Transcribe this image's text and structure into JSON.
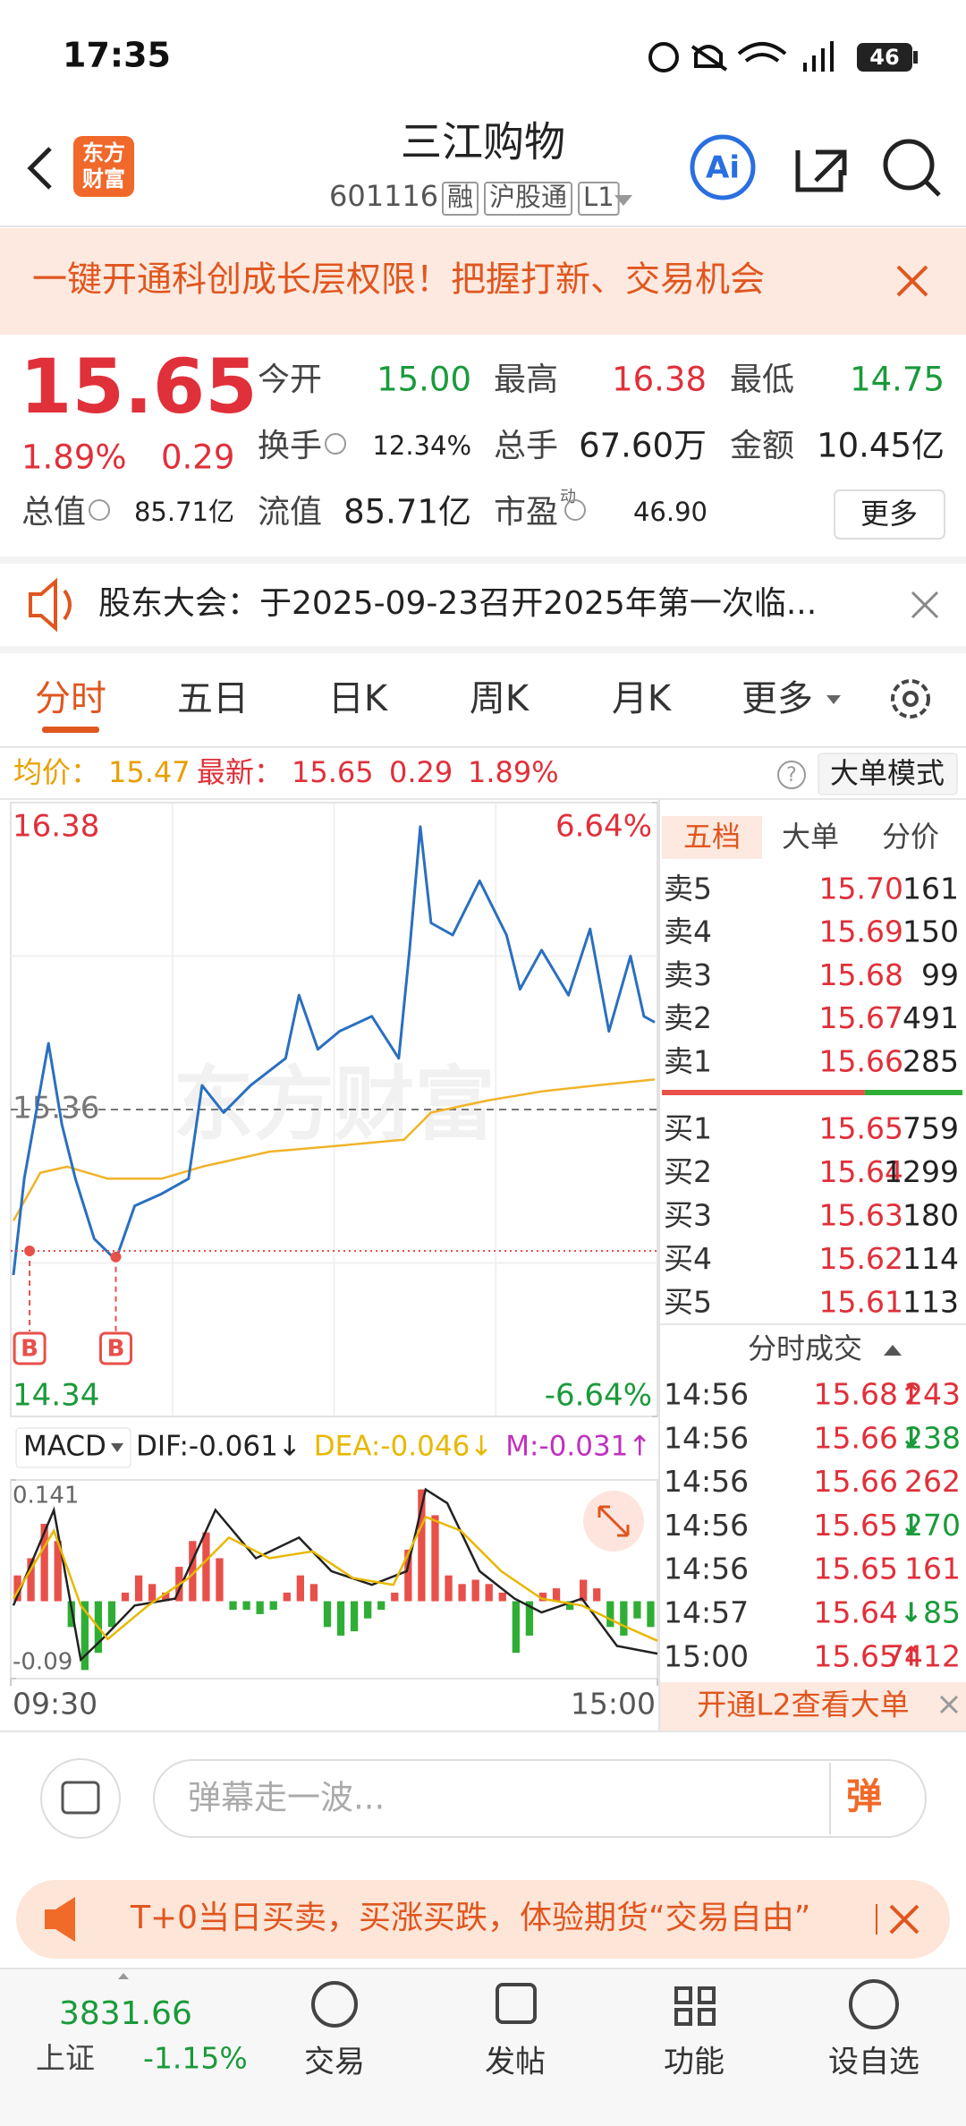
{
  "status_bar": {
    "time": "17:35",
    "battery": "46"
  },
  "header": {
    "logo": [
      "东方",
      "财富"
    ],
    "title": "三江购物",
    "code": "601116",
    "tags": [
      "融",
      "沪股通",
      "L1"
    ],
    "ai_button": "Ai"
  },
  "banner": {
    "text": "一键开通科创成长层权限！把握打新、交易机会"
  },
  "quote": {
    "price": "15.65",
    "change_pct": "1.89%",
    "change": "0.29",
    "rows": [
      [
        {
          "label": "今开",
          "value": "15.00",
          "color": "#1a9a3a"
        },
        {
          "label": "最高",
          "value": "16.38",
          "color": "#e0303a"
        },
        {
          "label": "最低",
          "value": "14.75",
          "color": "#1a9a3a"
        }
      ],
      [
        {
          "label": "换手",
          "value": "12.34%",
          "info": true
        },
        {
          "label": "总手",
          "value": "67.60万"
        },
        {
          "label": "金额",
          "value": "10.45亿"
        }
      ],
      [
        {
          "label": "总值",
          "value": "85.71亿",
          "info": true
        },
        {
          "label": "流值",
          "value": "85.71亿"
        },
        {
          "label": "市盈",
          "sup": "动",
          "value": "46.90",
          "info": true
        }
      ]
    ],
    "more_button": "更多"
  },
  "notice": {
    "text": "股东大会：于2025-09-23召开2025年第一次临..."
  },
  "tabs": {
    "items": [
      "分时",
      "五日",
      "日K",
      "周K",
      "月K",
      "更多"
    ],
    "active": 0
  },
  "info_line": {
    "avg_label": "均价：",
    "avg": "15.47",
    "last_label": "最新：",
    "last": "15.65",
    "change": "0.29",
    "change_pct": "1.89%",
    "mode_button": "大单模式"
  },
  "chart_data": [
    {
      "type": "line",
      "watermark": "东方财富",
      "xlim": [
        0,
        240
      ],
      "xticks": [
        {
          "value": 0,
          "label": "09:30"
        },
        {
          "value": 240,
          "label": "15:00"
        }
      ],
      "ylim": [
        14.34,
        16.38
      ],
      "yticks": [
        16.38,
        15.36,
        14.34
      ],
      "y2lim": [
        -6.64,
        6.64
      ],
      "y2ticks": [
        {
          "value": 6.64,
          "label": "6.64%"
        },
        {
          "value": -6.64,
          "label": "-6.64%"
        }
      ],
      "series": [
        {
          "color": "#2a6fc0",
          "x": [
            1,
            5,
            14,
            19,
            24,
            31,
            39,
            46,
            56,
            66,
            71,
            79,
            89,
            102,
            107,
            114,
            122,
            134,
            144,
            148,
            152,
            156,
            164,
            174,
            184,
            189,
            197,
            207,
            215,
            222,
            230,
            235,
            239
          ],
          "values": [
            14.81,
            15.13,
            15.58,
            15.31,
            15.13,
            14.93,
            14.86,
            15.04,
            15.08,
            15.13,
            15.44,
            15.35,
            15.44,
            15.53,
            15.74,
            15.56,
            15.62,
            15.67,
            15.53,
            15.89,
            16.3,
            15.98,
            15.94,
            16.12,
            15.94,
            15.76,
            15.89,
            15.74,
            15.96,
            15.62,
            15.87,
            15.67,
            15.65
          ]
        },
        {
          "color": "#f0b429",
          "x": [
            1,
            11,
            21,
            36,
            56,
            71,
            96,
            122,
            146,
            156,
            177,
            197,
            217,
            239
          ],
          "values": [
            14.99,
            15.15,
            15.17,
            15.13,
            15.13,
            15.17,
            15.22,
            15.24,
            15.26,
            15.35,
            15.39,
            15.42,
            15.44,
            15.46
          ]
        }
      ],
      "markers": {
        "label": "B",
        "color": "#e8504a",
        "x": [
          7,
          39
        ],
        "values": [
          14.89,
          14.87
        ]
      }
    },
    {
      "type": "macd",
      "indicator": "MACD",
      "labels": [
        {
          "text": "DIF:-0.061↓",
          "color": "#222222"
        },
        {
          "text": "DEA:-0.046↓",
          "color": "#e8b800"
        },
        {
          "text": "M:-0.031↑",
          "color": "#c030c0"
        }
      ],
      "xlim": [
        0,
        240
      ],
      "ylim": [
        -0.09,
        0.141
      ],
      "yticks": [
        0.141,
        -0.09
      ],
      "histogram": {
        "up_color": "#e8504a",
        "down_color": "#2fae35",
        "x": [
          2.5,
          7.5,
          12.5,
          17.5,
          22.5,
          27.5,
          32.5,
          37.5,
          42.5,
          47.5,
          52.5,
          57.5,
          62.5,
          67.5,
          72.5,
          77.5,
          82.5,
          87.5,
          92.5,
          97.5,
          102.5,
          107.5,
          112.5,
          117.5,
          122.5,
          127.5,
          132.5,
          137.5,
          142.5,
          147.5,
          152.5,
          157.5,
          162.5,
          167.5,
          172.5,
          177.5,
          182.5,
          187.5,
          192.5,
          197.5,
          202.5,
          207.5,
          212.5,
          217.5,
          222.5,
          227.5,
          232.5,
          237.5
        ],
        "values": [
          0.03,
          0.05,
          0.09,
          0.07,
          -0.03,
          -0.08,
          -0.06,
          -0.03,
          0.01,
          0.03,
          0.02,
          0.01,
          0.04,
          0.07,
          0.08,
          0.05,
          -0.01,
          -0.01,
          -0.015,
          -0.01,
          0.01,
          0.03,
          0.02,
          -0.03,
          -0.04,
          -0.035,
          -0.02,
          -0.01,
          0.01,
          0.06,
          0.13,
          0.1,
          0.03,
          0.02,
          0.025,
          0.02,
          0.01,
          -0.06,
          -0.04,
          0.01,
          0.015,
          -0.01,
          0.025,
          0.015,
          -0.03,
          -0.04,
          -0.02,
          -0.03
        ]
      },
      "series": [
        {
          "color": "#222222",
          "x": [
            1,
            16,
            26,
            34,
            46,
            61,
            76,
            91,
            107,
            119,
            134,
            147,
            154,
            162,
            174,
            187,
            197,
            212,
            225,
            240
          ],
          "values": [
            -0.005,
            0.106,
            -0.068,
            -0.044,
            -0.005,
            0.003,
            0.106,
            0.05,
            0.074,
            0.035,
            0.019,
            0.035,
            0.13,
            0.114,
            0.035,
            0.003,
            -0.013,
            0.003,
            -0.052,
            -0.061
          ]
        },
        {
          "color": "#e8b800",
          "x": [
            1,
            16,
            26,
            36,
            51,
            66,
            81,
            96,
            112,
            127,
            142,
            154,
            167,
            182,
            197,
            212,
            227,
            240
          ],
          "values": [
            0.003,
            0.082,
            -0.005,
            -0.044,
            -0.005,
            0.027,
            0.074,
            0.05,
            0.058,
            0.027,
            0.019,
            0.098,
            0.082,
            0.035,
            0.003,
            -0.005,
            -0.028,
            -0.046
          ]
        }
      ]
    }
  ],
  "order_panel": {
    "tabs": [
      "五档",
      "大单",
      "分价"
    ],
    "asks": [
      {
        "label": "卖5",
        "price": "15.70",
        "volume": "161"
      },
      {
        "label": "卖4",
        "price": "15.69",
        "volume": "150"
      },
      {
        "label": "卖3",
        "price": "15.68",
        "volume": "99"
      },
      {
        "label": "卖2",
        "price": "15.67",
        "volume": "491"
      },
      {
        "label": "卖1",
        "price": "15.66",
        "volume": "285"
      }
    ],
    "bids": [
      {
        "label": "买1",
        "price": "15.65",
        "volume": "759"
      },
      {
        "label": "买2",
        "price": "15.64",
        "volume": "1299"
      },
      {
        "label": "买3",
        "price": "15.63",
        "volume": "180"
      },
      {
        "label": "买4",
        "price": "15.62",
        "volume": "114"
      },
      {
        "label": "买5",
        "price": "15.61",
        "volume": "113"
      }
    ],
    "trades_title": "分时成交",
    "trades": [
      {
        "time": "14:56",
        "price": "15.68",
        "arrow": "↑",
        "volume": "243",
        "color": "#e0303a"
      },
      {
        "time": "14:56",
        "price": "15.66",
        "arrow": "↓",
        "volume": "238",
        "color": "#1a9a3a"
      },
      {
        "time": "14:56",
        "price": "15.66",
        "volume": "262",
        "color": "#e0303a"
      },
      {
        "time": "14:56",
        "price": "15.65",
        "arrow": "↓",
        "volume": "270",
        "color": "#1a9a3a"
      },
      {
        "time": "14:56",
        "price": "15.65",
        "volume": "161",
        "color": "#e0303a"
      },
      {
        "time": "14:57",
        "price": "15.64",
        "arrow": "↓",
        "volume": "85",
        "color": "#1a9a3a"
      },
      {
        "time": "15:00",
        "price": "15.65",
        "arrow": "↑",
        "volume": "7412",
        "color": "#e0303a"
      }
    ],
    "l2_button": "开通L2查看大单"
  },
  "comment": {
    "placeholder": "弹幕走一波...",
    "button": "弹"
  },
  "promo": {
    "text": "T+0当日买卖，买涨买跌，体验期货“交易自由”"
  },
  "bottom_nav": {
    "index_value": "3831.66",
    "index_name": "上证",
    "index_change": "-1.15%",
    "items": [
      "交易",
      "发帖",
      "功能",
      "设自选"
    ]
  }
}
